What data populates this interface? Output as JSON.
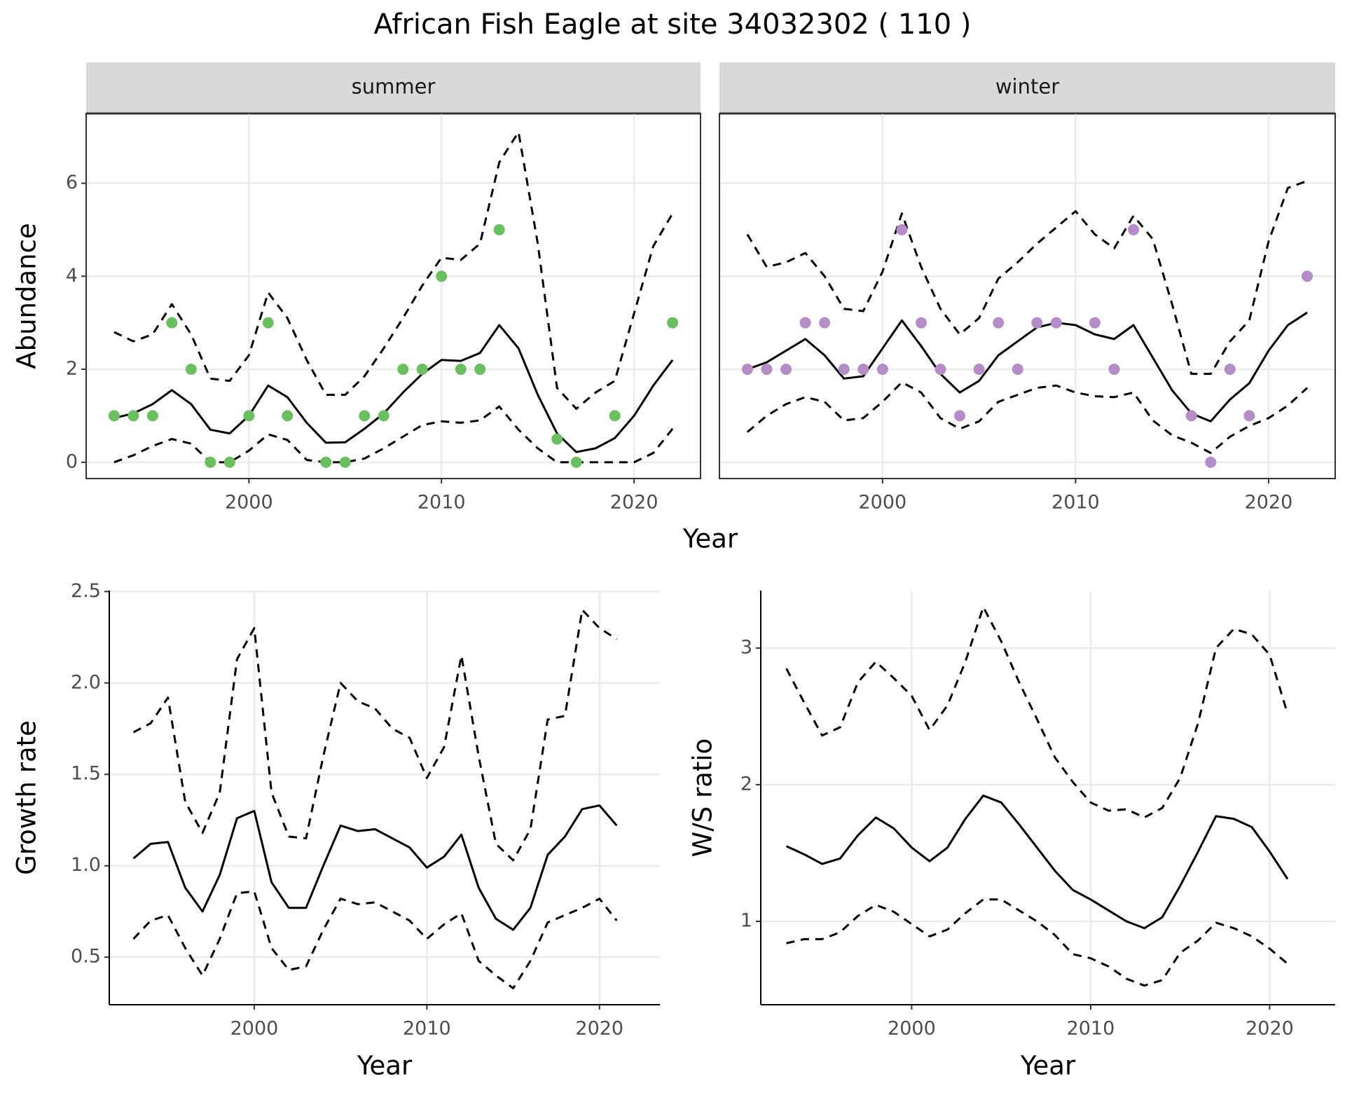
{
  "title": "African Fish Eagle at site 34032302 ( 110 )",
  "chart_data": [
    {
      "type": "line",
      "strip": "summer",
      "xlabel": "Year",
      "ylabel": "Abundance",
      "xlim": [
        1991.55,
        2023.45
      ],
      "ylim": [
        -0.35,
        7.5
      ],
      "xticks": [
        2000,
        2010,
        2020
      ],
      "yticks": [
        0,
        2,
        4,
        6
      ],
      "grid": true,
      "x": [
        1993,
        1994,
        1995,
        1996,
        1997,
        1998,
        1999,
        2000,
        2001,
        2002,
        2003,
        2004,
        2005,
        2006,
        2007,
        2008,
        2009,
        2010,
        2011,
        2012,
        2013,
        2014,
        2015,
        2016,
        2017,
        2018,
        2019,
        2020,
        2021,
        2022
      ],
      "series": [
        {
          "color": "#000000",
          "dashed": true,
          "values": [
            2.8,
            2.6,
            2.75,
            3.4,
            2.75,
            1.8,
            1.75,
            2.3,
            3.65,
            3.1,
            2.2,
            1.45,
            1.45,
            1.85,
            2.45,
            3.1,
            3.8,
            4.4,
            4.35,
            4.7,
            6.45,
            7.1,
            4.7,
            1.6,
            1.15,
            1.5,
            1.75,
            3.2,
            4.65,
            5.35
          ]
        },
        {
          "color": "#000000",
          "dashed": false,
          "values": [
            0.95,
            1.05,
            1.25,
            1.55,
            1.25,
            0.7,
            0.62,
            1.0,
            1.65,
            1.4,
            0.85,
            0.42,
            0.43,
            0.72,
            1.05,
            1.5,
            1.9,
            2.2,
            2.18,
            2.35,
            2.95,
            2.45,
            1.45,
            0.62,
            0.22,
            0.3,
            0.52,
            1.0,
            1.65,
            2.2
          ]
        },
        {
          "color": "#000000",
          "dashed": true,
          "values": [
            0,
            0.15,
            0.35,
            0.5,
            0.4,
            0,
            0,
            0.25,
            0.6,
            0.48,
            0.05,
            0,
            0,
            0.08,
            0.3,
            0.55,
            0.8,
            0.88,
            0.85,
            0.9,
            1.2,
            0.7,
            0.3,
            0,
            0,
            0,
            0,
            0,
            0.2,
            0.72
          ]
        },
        {
          "color": "#6abf5e",
          "marker": "point",
          "x": [
            1993,
            1994,
            1995,
            1996,
            1997,
            1998,
            1999,
            2000,
            2001,
            2002,
            2004,
            2005,
            2006,
            2007,
            2008,
            2009,
            2010,
            2011,
            2012,
            2013,
            2016,
            2017,
            2019,
            2022
          ],
          "values": [
            1,
            1,
            1,
            3,
            2,
            0,
            0,
            1,
            3,
            1,
            0,
            0,
            1,
            1,
            2,
            2,
            4,
            2,
            2,
            5,
            0.5,
            0,
            1,
            3
          ]
        }
      ]
    },
    {
      "type": "line",
      "strip": "winter",
      "xlim": [
        1991.55,
        2023.45
      ],
      "ylim": [
        -0.35,
        7.5
      ],
      "xticks": [
        2000,
        2010,
        2020
      ],
      "yticks": [
        0,
        2,
        4,
        6
      ],
      "grid": true,
      "x": [
        1993,
        1994,
        1995,
        1996,
        1997,
        1998,
        1999,
        2000,
        2001,
        2002,
        2003,
        2004,
        2005,
        2006,
        2007,
        2008,
        2009,
        2010,
        2011,
        2012,
        2013,
        2014,
        2015,
        2016,
        2017,
        2018,
        2019,
        2020,
        2021,
        2022
      ],
      "series": [
        {
          "color": "#000000",
          "dashed": true,
          "values": [
            4.9,
            4.2,
            4.3,
            4.5,
            4.0,
            3.3,
            3.25,
            4.1,
            5.35,
            4.2,
            3.3,
            2.75,
            3.1,
            3.95,
            4.3,
            4.7,
            5.05,
            5.4,
            4.9,
            4.6,
            5.3,
            4.8,
            3.4,
            1.9,
            1.9,
            2.6,
            3.05,
            4.75,
            5.9,
            6.05
          ]
        },
        {
          "color": "#000000",
          "dashed": false,
          "values": [
            2.0,
            2.15,
            2.4,
            2.65,
            2.3,
            1.8,
            1.85,
            2.45,
            3.05,
            2.5,
            1.9,
            1.5,
            1.75,
            2.3,
            2.6,
            2.9,
            3.0,
            2.95,
            2.75,
            2.65,
            2.95,
            2.25,
            1.55,
            1.05,
            0.88,
            1.35,
            1.7,
            2.4,
            2.95,
            3.22
          ]
        },
        {
          "color": "#000000",
          "dashed": true,
          "values": [
            0.65,
            1.0,
            1.25,
            1.4,
            1.3,
            0.9,
            0.95,
            1.3,
            1.72,
            1.5,
            0.95,
            0.72,
            0.88,
            1.3,
            1.45,
            1.6,
            1.65,
            1.5,
            1.42,
            1.4,
            1.5,
            0.9,
            0.58,
            0.42,
            0.2,
            0.55,
            0.78,
            0.95,
            1.22,
            1.6
          ]
        },
        {
          "color": "#b48cc8",
          "marker": "point",
          "x": [
            1993,
            1994,
            1995,
            1996,
            1997,
            1998,
            1999,
            2000,
            2001,
            2002,
            2003,
            2004,
            2005,
            2006,
            2007,
            2008,
            2009,
            2011,
            2012,
            2013,
            2016,
            2017,
            2018,
            2019,
            2022
          ],
          "values": [
            2,
            2,
            2,
            3,
            3,
            2,
            2,
            2,
            5,
            3,
            2,
            1,
            2,
            3,
            2,
            3,
            3,
            3,
            2,
            5,
            1,
            0,
            2,
            1,
            4
          ]
        }
      ]
    },
    {
      "type": "line",
      "xlabel": "Year",
      "ylabel": "Growth rate",
      "xlim": [
        1991.6,
        2023.5
      ],
      "ylim": [
        0.24,
        2.505
      ],
      "xticks": [
        2000,
        2010,
        2020
      ],
      "yticks": [
        0.5,
        {
          "value": 1,
          "label": "1.0"
        },
        1.5,
        {
          "value": 2,
          "label": "2.0"
        },
        2.5
      ],
      "grid": true,
      "x": [
        1993,
        1994,
        1995,
        1996,
        1997,
        1998,
        1999,
        2000,
        2001,
        2002,
        2003,
        2004,
        2005,
        2006,
        2007,
        2008,
        2009,
        2010,
        2011,
        2012,
        2013,
        2014,
        2015,
        2016,
        2017,
        2018,
        2019,
        2020,
        2021
      ],
      "series": [
        {
          "color": "#000000",
          "dashed": true,
          "values": [
            1.73,
            1.78,
            1.92,
            1.35,
            1.18,
            1.4,
            2.13,
            2.3,
            1.4,
            1.16,
            1.15,
            1.6,
            2.0,
            1.9,
            1.86,
            1.75,
            1.7,
            1.48,
            1.65,
            2.15,
            1.6,
            1.12,
            1.03,
            1.2,
            1.8,
            1.82,
            2.4,
            2.3,
            2.24
          ]
        },
        {
          "color": "#000000",
          "dashed": false,
          "values": [
            1.04,
            1.12,
            1.13,
            0.88,
            0.75,
            0.95,
            1.26,
            1.3,
            0.91,
            0.77,
            0.77,
            1.0,
            1.22,
            1.19,
            1.2,
            1.15,
            1.1,
            0.99,
            1.05,
            1.17,
            0.88,
            0.71,
            0.65,
            0.77,
            1.06,
            1.16,
            1.31,
            1.33,
            1.22
          ]
        },
        {
          "color": "#000000",
          "dashed": true,
          "values": [
            0.6,
            0.7,
            0.73,
            0.55,
            0.4,
            0.6,
            0.85,
            0.86,
            0.55,
            0.43,
            0.45,
            0.65,
            0.82,
            0.79,
            0.8,
            0.75,
            0.7,
            0.6,
            0.68,
            0.74,
            0.48,
            0.4,
            0.33,
            0.48,
            0.69,
            0.73,
            0.77,
            0.82,
            0.7
          ]
        }
      ]
    },
    {
      "type": "line",
      "xlabel": "Year",
      "ylabel": "W/S ratio",
      "xlim": [
        1991.57,
        2023.66
      ],
      "ylim": [
        0.39,
        3.42
      ],
      "xticks": [
        2000,
        2010,
        2020
      ],
      "yticks": [
        1,
        2,
        3
      ],
      "grid": true,
      "x": [
        1993,
        1994,
        1995,
        1996,
        1997,
        1998,
        1999,
        2000,
        2001,
        2002,
        2003,
        2004,
        2005,
        2006,
        2007,
        2008,
        2009,
        2010,
        2011,
        2012,
        2013,
        2014,
        2015,
        2016,
        2017,
        2018,
        2019,
        2020,
        2021
      ],
      "series": [
        {
          "color": "#000000",
          "dashed": true,
          "values": [
            2.85,
            2.6,
            2.36,
            2.42,
            2.75,
            2.9,
            2.78,
            2.65,
            2.4,
            2.58,
            2.9,
            3.3,
            3.05,
            2.75,
            2.48,
            2.2,
            2.02,
            1.87,
            1.81,
            1.82,
            1.76,
            1.83,
            2.05,
            2.45,
            3.0,
            3.14,
            3.1,
            2.95,
            2.52
          ]
        },
        {
          "color": "#000000",
          "dashed": false,
          "values": [
            1.55,
            1.49,
            1.42,
            1.46,
            1.63,
            1.76,
            1.68,
            1.54,
            1.44,
            1.54,
            1.75,
            1.92,
            1.87,
            1.71,
            1.54,
            1.37,
            1.23,
            1.16,
            1.08,
            1.0,
            0.95,
            1.03,
            1.26,
            1.51,
            1.77,
            1.75,
            1.69,
            1.51,
            1.31
          ]
        },
        {
          "color": "#000000",
          "dashed": true,
          "values": [
            0.84,
            0.87,
            0.87,
            0.92,
            1.04,
            1.12,
            1.07,
            0.98,
            0.89,
            0.94,
            1.06,
            1.16,
            1.16,
            1.08,
            1.0,
            0.9,
            0.76,
            0.73,
            0.67,
            0.58,
            0.53,
            0.57,
            0.77,
            0.86,
            0.99,
            0.95,
            0.89,
            0.8,
            0.69
          ]
        }
      ]
    }
  ]
}
